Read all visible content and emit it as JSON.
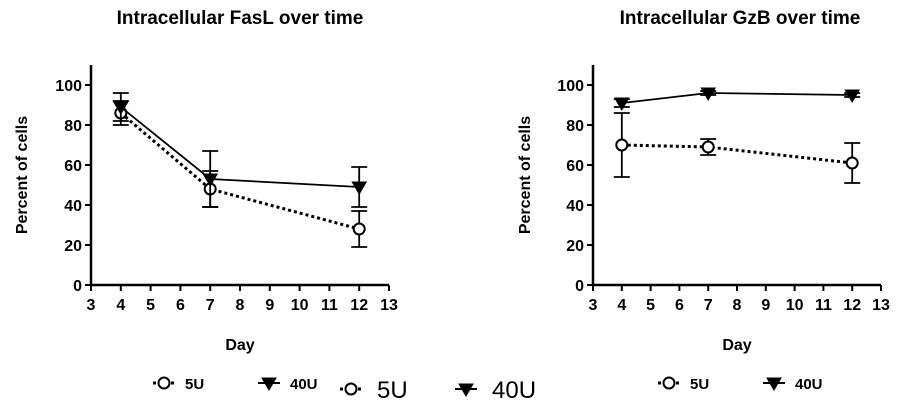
{
  "chart_data": [
    {
      "type": "line",
      "title": "Intracellular FasL over time",
      "xlabel": "Day",
      "ylabel": "Percent of cells",
      "xlim": [
        3,
        13
      ],
      "ylim": [
        0,
        110
      ],
      "xticks": [
        3,
        4,
        5,
        6,
        7,
        8,
        9,
        10,
        11,
        12,
        13
      ],
      "yticks": [
        0,
        20,
        40,
        60,
        80,
        100
      ],
      "x": [
        4,
        7,
        12
      ],
      "series": [
        {
          "name": "5U",
          "marker": "open-circle",
          "line_style": "dotted",
          "color": "#000000",
          "values": [
            86,
            48,
            28
          ],
          "errors": [
            6,
            9,
            9
          ]
        },
        {
          "name": "40U",
          "marker": "filled-triangle-down",
          "line_style": "solid",
          "color": "#000000",
          "values": [
            89,
            53,
            49
          ],
          "errors": [
            7,
            14,
            10
          ]
        }
      ],
      "legend": {
        "items": [
          {
            "text": "5U",
            "marker": "open-circle",
            "line_style": "dotted"
          },
          {
            "text": "40U",
            "marker": "filled-triangle-down",
            "line_style": "solid"
          }
        ]
      }
    },
    {
      "type": "line",
      "title": "Intracellular GzB over time",
      "xlabel": "Day",
      "ylabel": "Percent of cells",
      "xlim": [
        3,
        13
      ],
      "ylim": [
        0,
        110
      ],
      "xticks": [
        3,
        4,
        5,
        6,
        7,
        8,
        9,
        10,
        11,
        12,
        13
      ],
      "yticks": [
        0,
        20,
        40,
        60,
        80,
        100
      ],
      "x": [
        4,
        7,
        12
      ],
      "series": [
        {
          "name": "5U",
          "marker": "open-circle",
          "line_style": "dotted",
          "color": "#000000",
          "values": [
            70,
            69,
            61
          ],
          "errors": [
            16,
            4,
            10
          ]
        },
        {
          "name": "40U",
          "marker": "filled-triangle-down",
          "line_style": "solid",
          "color": "#000000",
          "values": [
            91,
            96,
            95
          ],
          "errors": [
            2,
            1,
            1
          ]
        }
      ],
      "legend": {
        "items": [
          {
            "text": "5U",
            "marker": "open-circle",
            "line_style": "dotted"
          },
          {
            "text": "40U",
            "marker": "filled-triangle-down",
            "line_style": "solid"
          }
        ]
      }
    }
  ],
  "center_legend": {
    "items": [
      {
        "text": "5U",
        "marker": "open-circle",
        "line_style": "dotted"
      },
      {
        "text": "40U",
        "marker": "filled-triangle-down",
        "line_style": "solid"
      }
    ]
  }
}
